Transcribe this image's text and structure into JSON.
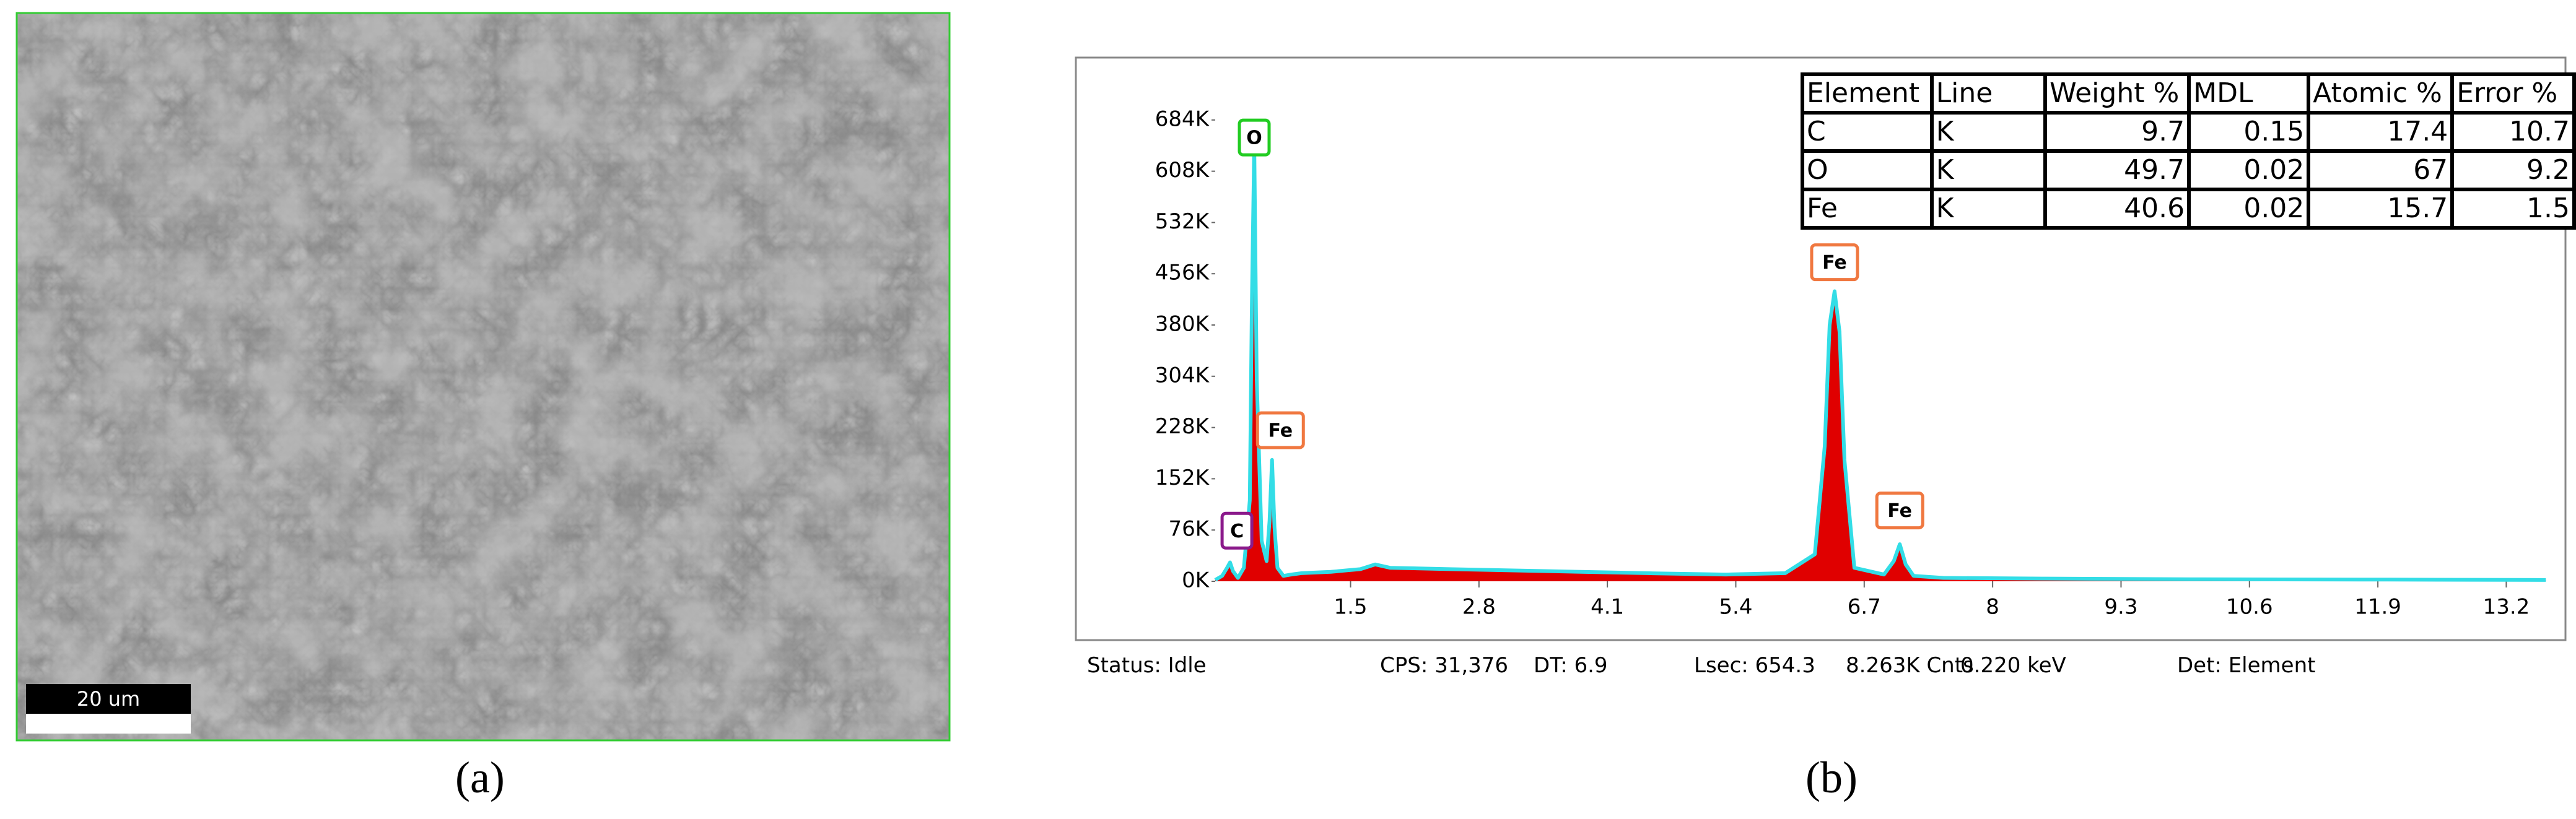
{
  "panel_a": {
    "label": "(a)",
    "scale_bar": "20 um"
  },
  "panel_b": {
    "label": "(b)"
  },
  "chart_data": {
    "type": "area",
    "x": [
      0.13,
      0.2,
      0.25,
      0.28,
      0.31,
      0.36,
      0.42,
      0.48,
      0.5,
      0.525,
      0.55,
      0.6,
      0.65,
      0.68,
      0.705,
      0.73,
      0.76,
      0.82,
      0.9,
      1.0,
      1.3,
      1.6,
      1.75,
      1.9,
      2.5,
      3.5,
      4.5,
      5.3,
      5.9,
      6.2,
      6.3,
      6.35,
      6.4,
      6.45,
      6.5,
      6.6,
      6.9,
      7.0,
      7.06,
      7.12,
      7.2,
      7.5,
      8.5,
      10,
      12,
      13.6
    ],
    "values": [
      2000,
      8000,
      20000,
      28000,
      15000,
      5000,
      20000,
      120000,
      400000,
      650000,
      300000,
      60000,
      30000,
      90000,
      180000,
      80000,
      20000,
      8000,
      10000,
      12000,
      14000,
      18000,
      25000,
      20000,
      18000,
      15000,
      12000,
      10000,
      12000,
      40000,
      200000,
      380000,
      430000,
      370000,
      180000,
      20000,
      10000,
      30000,
      55000,
      25000,
      8000,
      5000,
      4000,
      3000,
      2500,
      2000
    ],
    "color": "#e00000",
    "outline_color": "#33dde6",
    "xlim": [
      0.13,
      13.63
    ],
    "ylim": [
      0,
      760000
    ],
    "xticks": [
      1.5,
      2.8,
      4.1,
      5.4,
      6.7,
      8.0,
      9.3,
      10.6,
      11.9,
      13.2
    ],
    "yticks": [
      {
        "value": 0,
        "label": "0K"
      },
      {
        "value": 76000,
        "label": "76K"
      },
      {
        "value": 152000,
        "label": "152K"
      },
      {
        "value": 228000,
        "label": "228K"
      },
      {
        "value": 304000,
        "label": "304K"
      },
      {
        "value": 380000,
        "label": "380K"
      },
      {
        "value": 456000,
        "label": "456K"
      },
      {
        "value": 532000,
        "label": "532K"
      },
      {
        "value": 608000,
        "label": "608K"
      },
      {
        "value": 684000,
        "label": "684K"
      }
    ],
    "annotations": [
      {
        "text": "C",
        "x": 0.35,
        "y": 75000,
        "color": "#8b1a8b"
      },
      {
        "text": "O",
        "x": 0.525,
        "y": 658000,
        "color": "#22cc22"
      },
      {
        "text": "Fe",
        "x": 0.79,
        "y": 224000,
        "color": "#f07840"
      },
      {
        "text": "Fe",
        "x": 6.4,
        "y": 473000,
        "color": "#f07840"
      },
      {
        "text": "Fe",
        "x": 7.06,
        "y": 105000,
        "color": "#f07840"
      }
    ]
  },
  "table": {
    "header": [
      "Element",
      "Line",
      "Weight %",
      "MDL",
      "Atomic %",
      "Error %"
    ],
    "rows": [
      [
        "C",
        "K",
        "9.7",
        "0.15",
        "17.4",
        "10.7"
      ],
      [
        "O",
        "K",
        "49.7",
        "0.02",
        "67",
        "9.2"
      ],
      [
        "Fe",
        "K",
        "40.6",
        "0.02",
        "15.7",
        "1.5"
      ]
    ]
  },
  "status_bar": [
    "Status: Idle",
    "CPS: 31,376",
    "DT: 6.9",
    "Lsec: 654.3",
    "8.263K Cnts",
    "0.220 keV",
    "Det: Element"
  ]
}
